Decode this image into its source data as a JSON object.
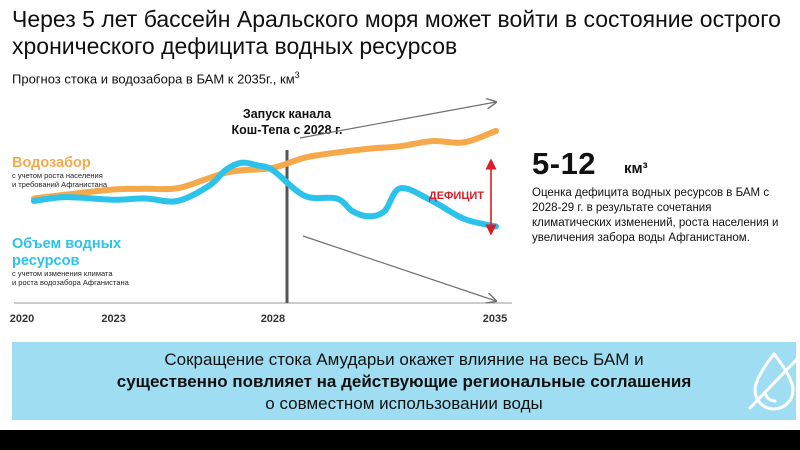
{
  "header": {
    "title": "Через 5 лет бассейн Аральского моря может войти в состояние острого хронического дефицита водных ресурсов"
  },
  "chart_title": {
    "text": "Прогноз стока и водозабора в БАМ к 2035г., км",
    "superscript": "3"
  },
  "chart_data": {
    "type": "line",
    "title": "Прогноз стока и водозабора в БАМ к 2035г., км3",
    "xlim": [
      2020,
      2035
    ],
    "x_ticks": [
      "2020",
      "2023",
      "2028",
      "2035"
    ],
    "series": [
      {
        "name": "Водозабор",
        "note": "с учетом роста населения и требований Афганистана",
        "color": "#f5a94a",
        "x": [
          2020.5,
          2021.5,
          2023,
          2024,
          2025,
          2026,
          2026.5,
          2027,
          2028,
          2029,
          2030,
          2031,
          2032,
          2033,
          2034,
          2035
        ],
        "y": [
          41.0,
          42.5,
          44.5,
          44.8,
          45.0,
          49.0,
          51.0,
          52.0,
          53.0,
          57.0,
          59.0,
          60.5,
          61.5,
          63.5,
          63.0,
          67.5
        ]
      },
      {
        "name": "Объем водных ресурсов",
        "note": "с учетом изменения климата и роста водозабора Афганистана",
        "color": "#2bc3ec",
        "x": [
          2020.5,
          2021.5,
          2023,
          2024,
          2025,
          2026,
          2026.5,
          2027,
          2027.5,
          2028,
          2029,
          2030,
          2030.5,
          2031,
          2031.5,
          2032,
          2033,
          2034,
          2035
        ],
        "y": [
          40.0,
          41.5,
          40.5,
          41.0,
          40.0,
          46.0,
          52.0,
          55.0,
          54.0,
          52.0,
          42.0,
          41.0,
          36.0,
          34.0,
          36.0,
          45.0,
          40.0,
          33.0,
          30.0
        ]
      }
    ],
    "event": {
      "x": 2028,
      "label_line1": "Запуск канала",
      "label_line2": "Кош-Тепа с 2028 г."
    },
    "deficit_label": "ДЕФИЦИТ"
  },
  "highlight": {
    "value": "5-12",
    "unit": "км³",
    "description": "Оценка дефицита водных ресурсов в БАМ с 2028-29 г. в результате сочетания климатических изменений, роста населения и увеличения забора воды Афганистаном."
  },
  "banner": {
    "line1": "Сокращение стока Амударьи окажет влияние на весь БАМ и",
    "line2": "существенно повлияет на действующие региональные соглашения",
    "line3": "о совместном использовании воды",
    "background": "#9fdef2",
    "icon": "crossed-out-water-drop-icon"
  },
  "colors": {
    "withdrawal": "#f5a94a",
    "resources": "#2bc3ec",
    "deficit": "#d81e28",
    "trend_arrows": "#707070",
    "event_line": "#555555"
  }
}
